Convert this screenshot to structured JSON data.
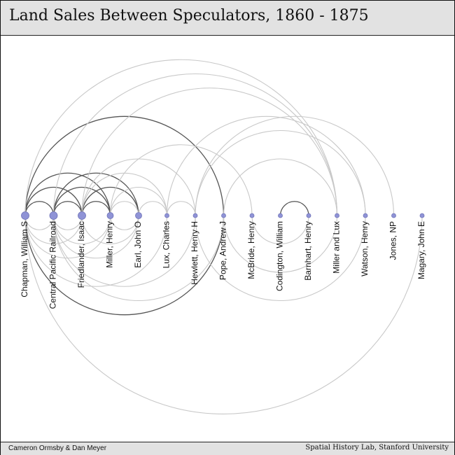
{
  "header": {
    "title": "Land Sales Between Speculators, 1860 - 1875"
  },
  "footer": {
    "left_text": "Cameron Ormsby & Dan Meyer",
    "right_text": "Spatial History Lab, Stanford University"
  },
  "colors": {
    "node": "#8f93d6",
    "node_stroke": "#6f73b8",
    "arc_light": "#c8c8c8",
    "arc_dark": "#555555"
  },
  "diagram": {
    "type": "arc-diagram",
    "nodes": [
      {
        "label": "Chapman, William S",
        "size": "large"
      },
      {
        "label": "Central Pacific Railroad",
        "size": "large"
      },
      {
        "label": "Friedlander, Isaac",
        "size": "large"
      },
      {
        "label": "Miller, Henry",
        "size": "medium"
      },
      {
        "label": "Earl, John O",
        "size": "medium"
      },
      {
        "label": "Lux, Charles",
        "size": "small"
      },
      {
        "label": "Hewlett, Henry H",
        "size": "small"
      },
      {
        "label": "Pope, Andrew J",
        "size": "small"
      },
      {
        "label": "McBride, Henry",
        "size": "small"
      },
      {
        "label": "Codington, William",
        "size": "small"
      },
      {
        "label": "Barnhart, Henry",
        "size": "small"
      },
      {
        "label": "Miller and Lux",
        "size": "small"
      },
      {
        "label": "Watson, Henry",
        "size": "small"
      },
      {
        "label": "Jones, NP",
        "size": "small"
      },
      {
        "label": "Magary, John E",
        "size": "small"
      }
    ],
    "links": [
      {
        "source": 0,
        "target": 1,
        "side": "above",
        "strength": "dark"
      },
      {
        "source": 0,
        "target": 2,
        "side": "above",
        "strength": "dark"
      },
      {
        "source": 1,
        "target": 2,
        "side": "above",
        "strength": "dark"
      },
      {
        "source": 1,
        "target": 3,
        "side": "above",
        "strength": "dark"
      },
      {
        "source": 1,
        "target": 4,
        "side": "above",
        "strength": "dark"
      },
      {
        "source": 2,
        "target": 3,
        "side": "above",
        "strength": "dark"
      },
      {
        "source": 2,
        "target": 4,
        "side": "above",
        "strength": "dark"
      },
      {
        "source": 0,
        "target": 3,
        "side": "above",
        "strength": "dark"
      },
      {
        "source": 3,
        "target": 4,
        "side": "above",
        "strength": "light"
      },
      {
        "source": 4,
        "target": 5,
        "side": "above",
        "strength": "light"
      },
      {
        "source": 5,
        "target": 6,
        "side": "above",
        "strength": "light"
      },
      {
        "source": 3,
        "target": 5,
        "side": "above",
        "strength": "light"
      },
      {
        "source": 2,
        "target": 5,
        "side": "above",
        "strength": "light"
      },
      {
        "source": 2,
        "target": 6,
        "side": "above",
        "strength": "light"
      },
      {
        "source": 0,
        "target": 7,
        "side": "above",
        "strength": "dark"
      },
      {
        "source": 0,
        "target": 11,
        "side": "above",
        "strength": "light"
      },
      {
        "source": 1,
        "target": 11,
        "side": "above",
        "strength": "light"
      },
      {
        "source": 2,
        "target": 11,
        "side": "above",
        "strength": "light"
      },
      {
        "source": 3,
        "target": 8,
        "side": "above",
        "strength": "light"
      },
      {
        "source": 5,
        "target": 12,
        "side": "above",
        "strength": "light"
      },
      {
        "source": 6,
        "target": 12,
        "side": "above",
        "strength": "light"
      },
      {
        "source": 6,
        "target": 13,
        "side": "above",
        "strength": "light"
      },
      {
        "source": 7,
        "target": 11,
        "side": "above",
        "strength": "light"
      },
      {
        "source": 9,
        "target": 10,
        "side": "above",
        "strength": "dark"
      },
      {
        "source": 0,
        "target": 1,
        "side": "below",
        "strength": "light"
      },
      {
        "source": 0,
        "target": 2,
        "side": "below",
        "strength": "light"
      },
      {
        "source": 1,
        "target": 2,
        "side": "below",
        "strength": "light"
      },
      {
        "source": 0,
        "target": 3,
        "side": "below",
        "strength": "light"
      },
      {
        "source": 1,
        "target": 3,
        "side": "below",
        "strength": "light"
      },
      {
        "source": 1,
        "target": 4,
        "side": "below",
        "strength": "light"
      },
      {
        "source": 2,
        "target": 4,
        "side": "below",
        "strength": "light"
      },
      {
        "source": 3,
        "target": 4,
        "side": "below",
        "strength": "light"
      },
      {
        "source": 0,
        "target": 5,
        "side": "below",
        "strength": "light"
      },
      {
        "source": 1,
        "target": 6,
        "side": "below",
        "strength": "light"
      },
      {
        "source": 0,
        "target": 7,
        "side": "below",
        "strength": "dark"
      },
      {
        "source": 1,
        "target": 7,
        "side": "below",
        "strength": "light"
      },
      {
        "source": 6,
        "target": 12,
        "side": "below",
        "strength": "light"
      },
      {
        "source": 7,
        "target": 11,
        "side": "below",
        "strength": "light"
      },
      {
        "source": 8,
        "target": 10,
        "side": "below",
        "strength": "light"
      },
      {
        "source": 0,
        "target": 14,
        "side": "below",
        "strength": "light"
      }
    ]
  }
}
